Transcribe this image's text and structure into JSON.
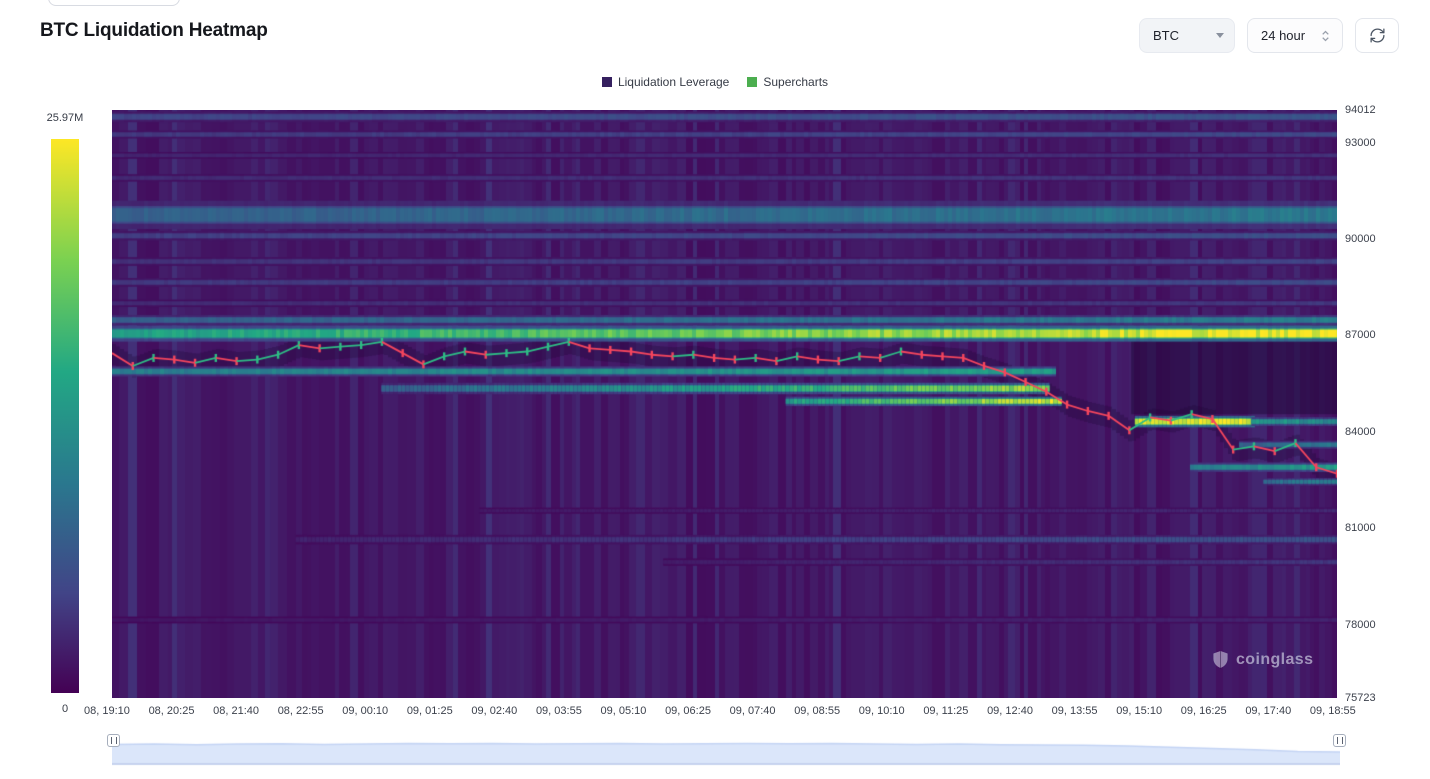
{
  "header": {
    "title": "BTC Liquidation Heatmap",
    "symbol_select": {
      "value": "BTC"
    },
    "timeframe_select": {
      "value": "24 hour"
    }
  },
  "watermark": {
    "text": "coinglass"
  },
  "chart_data": {
    "type": "heatmap",
    "title": "BTC Liquidation Heatmap",
    "colormap": "viridis",
    "legend": [
      {
        "label": "Liquidation Leverage",
        "color": "#35205f"
      },
      {
        "label": "Supercharts",
        "color": "#4cae4f"
      }
    ],
    "colorbar": {
      "label_max": "25.97M",
      "label_min": "0"
    },
    "y_axis": {
      "min": 75723,
      "max": 94012,
      "ticks": [
        94012,
        93000,
        90000,
        87000,
        84000,
        81000,
        78000,
        75723
      ]
    },
    "x_axis": {
      "tick_labels": [
        "08, 19:10",
        "08, 20:25",
        "08, 21:40",
        "08, 22:55",
        "09, 00:10",
        "09, 01:25",
        "09, 02:40",
        "09, 03:55",
        "09, 05:10",
        "09, 06:25",
        "09, 07:40",
        "09, 08:55",
        "09, 10:10",
        "09, 11:25",
        "09, 12:40",
        "09, 13:55",
        "09, 15:10",
        "09, 16:25",
        "09, 17:40",
        "09, 18:55"
      ]
    },
    "price_line": {
      "up_color": "#2ebd85",
      "down_color": "#f6465d",
      "prices": [
        86450,
        86050,
        86300,
        86250,
        86150,
        86300,
        86200,
        86250,
        86400,
        86700,
        86600,
        86650,
        86700,
        86800,
        86450,
        86100,
        86350,
        86500,
        86400,
        86450,
        86500,
        86650,
        86800,
        86600,
        86550,
        86500,
        86400,
        86350,
        86400,
        86300,
        86250,
        86300,
        86200,
        86350,
        86250,
        86200,
        86350,
        86300,
        86500,
        86400,
        86350,
        86300,
        86050,
        85850,
        85550,
        85250,
        84850,
        84650,
        84500,
        84050,
        84450,
        84350,
        84550,
        84400,
        83450,
        83550,
        83400,
        83650,
        82900,
        82700
      ]
    },
    "liquidation_bands": [
      {
        "price": 93800,
        "thickness": 160,
        "x0": 0,
        "x1": 1,
        "i0": 0.2,
        "i1": 0.26
      },
      {
        "price": 93250,
        "thickness": 120,
        "x0": 0,
        "x1": 1,
        "i0": 0.16,
        "i1": 0.22
      },
      {
        "price": 92600,
        "thickness": 100,
        "x0": 0,
        "x1": 1,
        "i0": 0.1,
        "i1": 0.14
      },
      {
        "price": 91900,
        "thickness": 110,
        "x0": 0,
        "x1": 1,
        "i0": 0.12,
        "i1": 0.16
      },
      {
        "price": 90750,
        "thickness": 420,
        "x0": 0,
        "x1": 1,
        "i0": 0.3,
        "i1": 0.4
      },
      {
        "price": 90100,
        "thickness": 140,
        "x0": 0,
        "x1": 1,
        "i0": 0.18,
        "i1": 0.24
      },
      {
        "price": 89300,
        "thickness": 130,
        "x0": 0,
        "x1": 1,
        "i0": 0.14,
        "i1": 0.2
      },
      {
        "price": 88650,
        "thickness": 130,
        "x0": 0,
        "x1": 1,
        "i0": 0.16,
        "i1": 0.22
      },
      {
        "price": 88000,
        "thickness": 110,
        "x0": 0,
        "x1": 1,
        "i0": 0.12,
        "i1": 0.16
      },
      {
        "price": 87480,
        "thickness": 150,
        "x0": 0,
        "x1": 1,
        "i0": 0.3,
        "i1": 0.42
      },
      {
        "price": 87060,
        "thickness": 240,
        "x0": 0,
        "x1": 1,
        "i0": 0.55,
        "i1": 1.0
      },
      {
        "price": 85880,
        "thickness": 150,
        "x0": 0,
        "x1": 0.77,
        "i0": 0.42,
        "i1": 0.55
      },
      {
        "price": 85350,
        "thickness": 170,
        "x0": 0.22,
        "x1": 0.765,
        "i0": 0.3,
        "i1": 0.85
      },
      {
        "price": 84950,
        "thickness": 140,
        "x0": 0.55,
        "x1": 0.775,
        "i0": 0.55,
        "i1": 0.95
      },
      {
        "price": 84320,
        "thickness": 170,
        "x0": 0.835,
        "x1": 0.93,
        "i0": 0.95,
        "i1": 1.0
      },
      {
        "price": 84320,
        "thickness": 130,
        "x0": 0.93,
        "x1": 1,
        "i0": 0.55,
        "i1": 0.45
      },
      {
        "price": 83600,
        "thickness": 120,
        "x0": 0.92,
        "x1": 1,
        "i0": 0.3,
        "i1": 0.4
      },
      {
        "price": 82900,
        "thickness": 140,
        "x0": 0.88,
        "x1": 1,
        "i0": 0.42,
        "i1": 0.55
      },
      {
        "price": 82450,
        "thickness": 110,
        "x0": 0.94,
        "x1": 1,
        "i0": 0.35,
        "i1": 0.45
      },
      {
        "price": 81550,
        "thickness": 90,
        "x0": 0.3,
        "x1": 1,
        "i0": 0.07,
        "i1": 0.12
      },
      {
        "price": 80650,
        "thickness": 140,
        "x0": 0.15,
        "x1": 1,
        "i0": 0.1,
        "i1": 0.26
      },
      {
        "price": 79950,
        "thickness": 110,
        "x0": 0.45,
        "x1": 1,
        "i0": 0.08,
        "i1": 0.16
      },
      {
        "price": 78150,
        "thickness": 100,
        "x0": 0,
        "x1": 1,
        "i0": 0.06,
        "i1": 0.1
      }
    ],
    "navigator": {
      "fill": "#dbe6fa",
      "line": "#c4d4f4",
      "values": [
        0.55,
        0.56,
        0.54,
        0.56,
        0.57,
        0.55,
        0.56,
        0.58,
        0.57,
        0.58,
        0.56,
        0.57,
        0.58,
        0.56,
        0.57,
        0.58,
        0.57,
        0.58,
        0.56,
        0.55,
        0.56,
        0.54,
        0.53,
        0.52,
        0.5,
        0.46,
        0.42,
        0.38,
        0.33,
        0.31
      ]
    }
  }
}
